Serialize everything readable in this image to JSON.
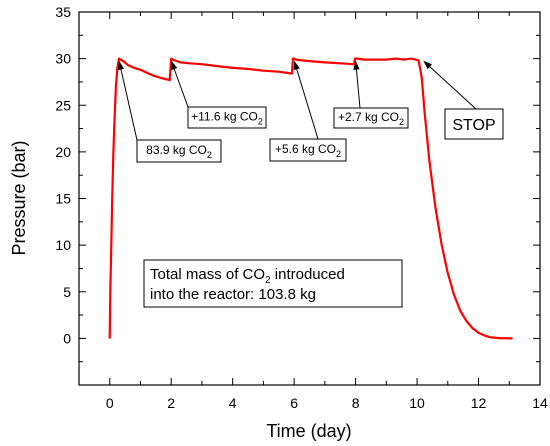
{
  "chart_data": {
    "type": "line",
    "xlabel": "Time (day)",
    "ylabel": "Pressure (bar)",
    "xlim": [
      -1,
      14
    ],
    "ylim": [
      -5,
      35
    ],
    "xticks": [
      0,
      2,
      4,
      6,
      8,
      10,
      12,
      14
    ],
    "yticks": [
      0,
      5,
      10,
      15,
      20,
      25,
      30,
      35
    ],
    "grid": false,
    "series": [
      {
        "color": "#ff0000",
        "x": [
          0.0,
          0.02,
          0.05,
          0.08,
          0.12,
          0.16,
          0.2,
          0.25,
          0.3,
          0.45,
          0.6,
          0.8,
          1.0,
          1.2,
          1.4,
          1.6,
          1.8,
          1.95,
          2.0,
          2.05,
          2.3,
          2.6,
          3.0,
          3.5,
          4.0,
          4.5,
          5.0,
          5.5,
          5.9,
          5.93,
          5.96,
          6.0,
          6.05,
          6.3,
          6.6,
          7.0,
          7.5,
          7.95,
          7.98,
          8.0,
          8.05,
          8.3,
          8.6,
          9.0,
          9.3,
          9.6,
          9.8,
          9.95,
          10.05,
          10.15,
          10.25,
          10.4,
          10.6,
          10.8,
          11.0,
          11.2,
          11.4,
          11.6,
          11.8,
          12.0,
          12.2,
          12.4,
          12.7,
          13.0,
          13.1
        ],
        "y": [
          0.0,
          5.0,
          10.0,
          15.0,
          20.0,
          24.0,
          27.0,
          29.0,
          30.0,
          29.7,
          29.3,
          29.0,
          28.8,
          28.5,
          28.2,
          28.0,
          27.8,
          27.7,
          30.0,
          29.9,
          29.6,
          29.5,
          29.4,
          29.2,
          29.0,
          28.9,
          28.7,
          28.6,
          28.4,
          28.4,
          30.0,
          30.0,
          29.9,
          29.8,
          29.7,
          29.6,
          29.5,
          29.4,
          30.0,
          30.0,
          30.0,
          29.9,
          29.9,
          29.9,
          30.0,
          29.9,
          30.0,
          29.9,
          29.8,
          28.0,
          24.0,
          19.0,
          14.0,
          10.0,
          7.0,
          4.7,
          3.0,
          1.9,
          1.1,
          0.6,
          0.3,
          0.1,
          0.03,
          0.0,
          0.0
        ]
      }
    ],
    "annotations": [
      {
        "base": "83.9 kg CO",
        "sub": "2",
        "point": [
          0.3,
          30.0
        ]
      },
      {
        "base": "+11.6 kg CO",
        "sub": "2",
        "point": [
          2.0,
          30.0
        ]
      },
      {
        "base": "+5.6 kg CO",
        "sub": "2",
        "point": [
          6.0,
          30.0
        ]
      },
      {
        "base": "+2.7 kg CO",
        "sub": "2",
        "point": [
          8.0,
          30.0
        ]
      },
      {
        "base": "STOP",
        "sub": "",
        "point": [
          10.2,
          30.0
        ]
      }
    ],
    "info_box": {
      "line1_pre": "Total mass of CO",
      "line1_sub": "2",
      "line1_post": " introduced",
      "line2": "into the reactor: 103.8 kg"
    }
  }
}
